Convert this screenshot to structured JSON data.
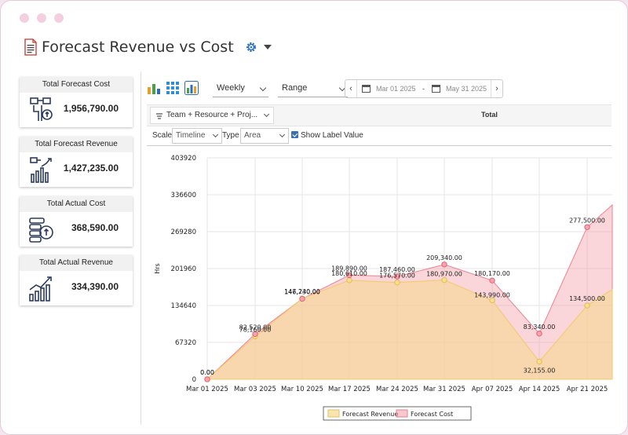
{
  "page": {
    "title": "Forecast Revenue vs Cost"
  },
  "cards": [
    {
      "label": "Total Forecast Cost",
      "value": "1,956,790.00",
      "icon": "worker-coins-icon"
    },
    {
      "label": "Total Forecast Revenue",
      "value": "1,427,235.00",
      "icon": "worker-growth-icon"
    },
    {
      "label": "Total Actual Cost",
      "value": "368,590.00",
      "icon": "coins-icon"
    },
    {
      "label": "Total Actual Revenue",
      "value": "334,390.00",
      "icon": "growth-icon"
    }
  ],
  "toolbar": {
    "period": "Weekly",
    "range": "Range",
    "start_date": "Mar 01 2025",
    "end_date": "May 31 2025",
    "separator": "-"
  },
  "subbar": {
    "grouping": "Team + Resource + Proj...",
    "total_header": "Total"
  },
  "options": {
    "scale_label": "Scale",
    "scale_value": "Timeline",
    "type_label": "Type",
    "type_value": "Area",
    "show_label": "Show Label Value",
    "show_label_checked": true
  },
  "colors": {
    "forecast_revenue": "#f5d98a",
    "forecast_cost": "#f39aa5"
  },
  "chart_data": {
    "type": "area",
    "ylabel": "Hrs",
    "ylim": [
      0,
      403920
    ],
    "yticks": [
      0,
      67320,
      134640,
      201960,
      269280,
      336600,
      403920
    ],
    "x": [
      "Mar 01 2025",
      "Mar 03 2025",
      "Mar 10 2025",
      "Mar 17 2025",
      "Mar 24 2025",
      "Mar 31 2025",
      "Apr 07 2025",
      "Apr 14 2025",
      "Apr 21 2025"
    ],
    "series": [
      {
        "name": "Forecast Revenue",
        "values": [
          0,
          78160,
          147240,
          180610,
          176570,
          180970,
          143990,
          32155,
          134500
        ],
        "labels": [
          "0.00",
          "78,160.00",
          "147,240.00",
          "180,610.00",
          "176,570.00",
          "180,970.00",
          "143,990.00",
          "32,155.00",
          "134,500.00"
        ],
        "end_value": 164000
      },
      {
        "name": "Forecast Cost",
        "values": [
          0,
          82520,
          146730,
          189890,
          187460,
          209340,
          180170,
          83340,
          277500
        ],
        "labels": [
          "0.00",
          "82,520.00",
          "146,730.00",
          "189,890.00",
          "187,460.00",
          "209,340.00",
          "180,170.00",
          "83,340.00",
          "277,500.00"
        ],
        "end_value": 318000
      }
    ],
    "legend": "bottom-center",
    "grid": true
  }
}
